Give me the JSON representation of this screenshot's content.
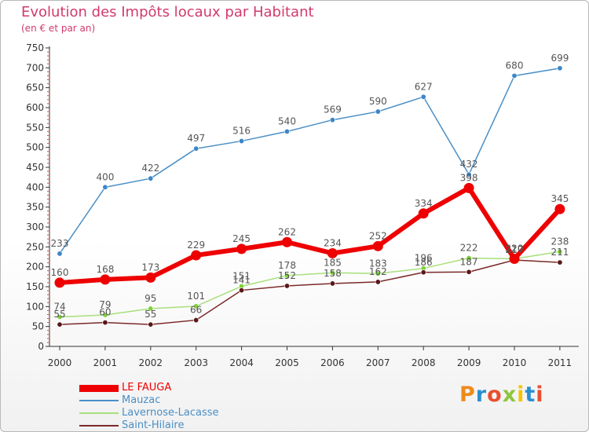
{
  "title": "Evolution des Impôts locaux par Habitant",
  "subtitle": "(en € et par an)",
  "brand": {
    "letters": [
      "P",
      "r",
      "o",
      "x",
      "i",
      "t",
      "i"
    ],
    "colors": [
      "#ef8a1b",
      "#2a8fcf",
      "#e94f2e",
      "#8cc63f",
      "#f5c400",
      "#2a8fcf",
      "#e94f2e"
    ]
  },
  "chart_data": {
    "type": "line",
    "title": "Evolution des Impôts locaux par Habitant",
    "subtitle": "(en € et par an)",
    "categories": [
      "2000",
      "2001",
      "2002",
      "2003",
      "2004",
      "2005",
      "2006",
      "2007",
      "2008",
      "2009",
      "2010",
      "2011"
    ],
    "ylim": [
      0,
      750
    ],
    "yticks": [
      0,
      50,
      100,
      150,
      200,
      250,
      300,
      350,
      400,
      450,
      500,
      550,
      600,
      650,
      700,
      750
    ],
    "grid": false,
    "legend_position": "bottom-left",
    "series": [
      {
        "name": "Mauzac",
        "color": "#4a8fc6",
        "marker": "#3b86c9",
        "width": 1.5,
        "markerR": 3.2,
        "values": [
          233,
          400,
          422,
          497,
          516,
          540,
          569,
          590,
          627,
          432,
          680,
          699
        ],
        "labels": [
          "233",
          "400",
          "422",
          "497",
          "516",
          "540",
          "569",
          "590",
          "627",
          "432",
          "680",
          "699"
        ]
      },
      {
        "name": "Lavernose-Lacasse",
        "color": "#a8e07c",
        "marker": "#7fd13a",
        "width": 1.5,
        "markerR": 3.2,
        "values": [
          74,
          79,
          95,
          101,
          151,
          178,
          185,
          183,
          196,
          222,
          220,
          238
        ],
        "labels": [
          "74",
          "79",
          "95",
          "101",
          "151",
          "178",
          "185",
          "183",
          "196",
          "222",
          "220",
          "238"
        ]
      },
      {
        "name": "Saint-Hilaire",
        "color": "#7a2a2a",
        "marker": "#5a1717",
        "width": 1.5,
        "markerR": 3.2,
        "values": [
          55,
          60,
          55,
          66,
          141,
          152,
          158,
          162,
          186,
          187,
          217,
          211
        ],
        "labels": [
          "55",
          "60",
          "55",
          "66",
          "141",
          "152",
          "158",
          "162",
          "186",
          "187",
          "217",
          "211"
        ]
      },
      {
        "name": "LE FAUGA",
        "color": "#ee0000",
        "marker": "#ee0000",
        "width": 6,
        "markerR": 6.5,
        "values": [
          160,
          168,
          173,
          229,
          245,
          262,
          234,
          252,
          334,
          398,
          220,
          345
        ],
        "labels": [
          "160",
          "168",
          "173",
          "229",
          "245",
          "262",
          "234",
          "252",
          "334",
          "398",
          "220",
          "345"
        ]
      }
    ],
    "legend": [
      {
        "name": "LE FAUGA",
        "color": "#ee0000",
        "text_color": "#ee0000",
        "width": 9
      },
      {
        "name": "Mauzac",
        "color": "#4a8fc6",
        "text_color": "#4a8fc6",
        "width": 2
      },
      {
        "name": "Lavernose-Lacasse",
        "color": "#a8e07c",
        "text_color": "#4a8fc6",
        "width": 2
      },
      {
        "name": "Saint-Hilaire",
        "color": "#7a2a2a",
        "text_color": "#4a8fc6",
        "width": 2
      }
    ]
  }
}
